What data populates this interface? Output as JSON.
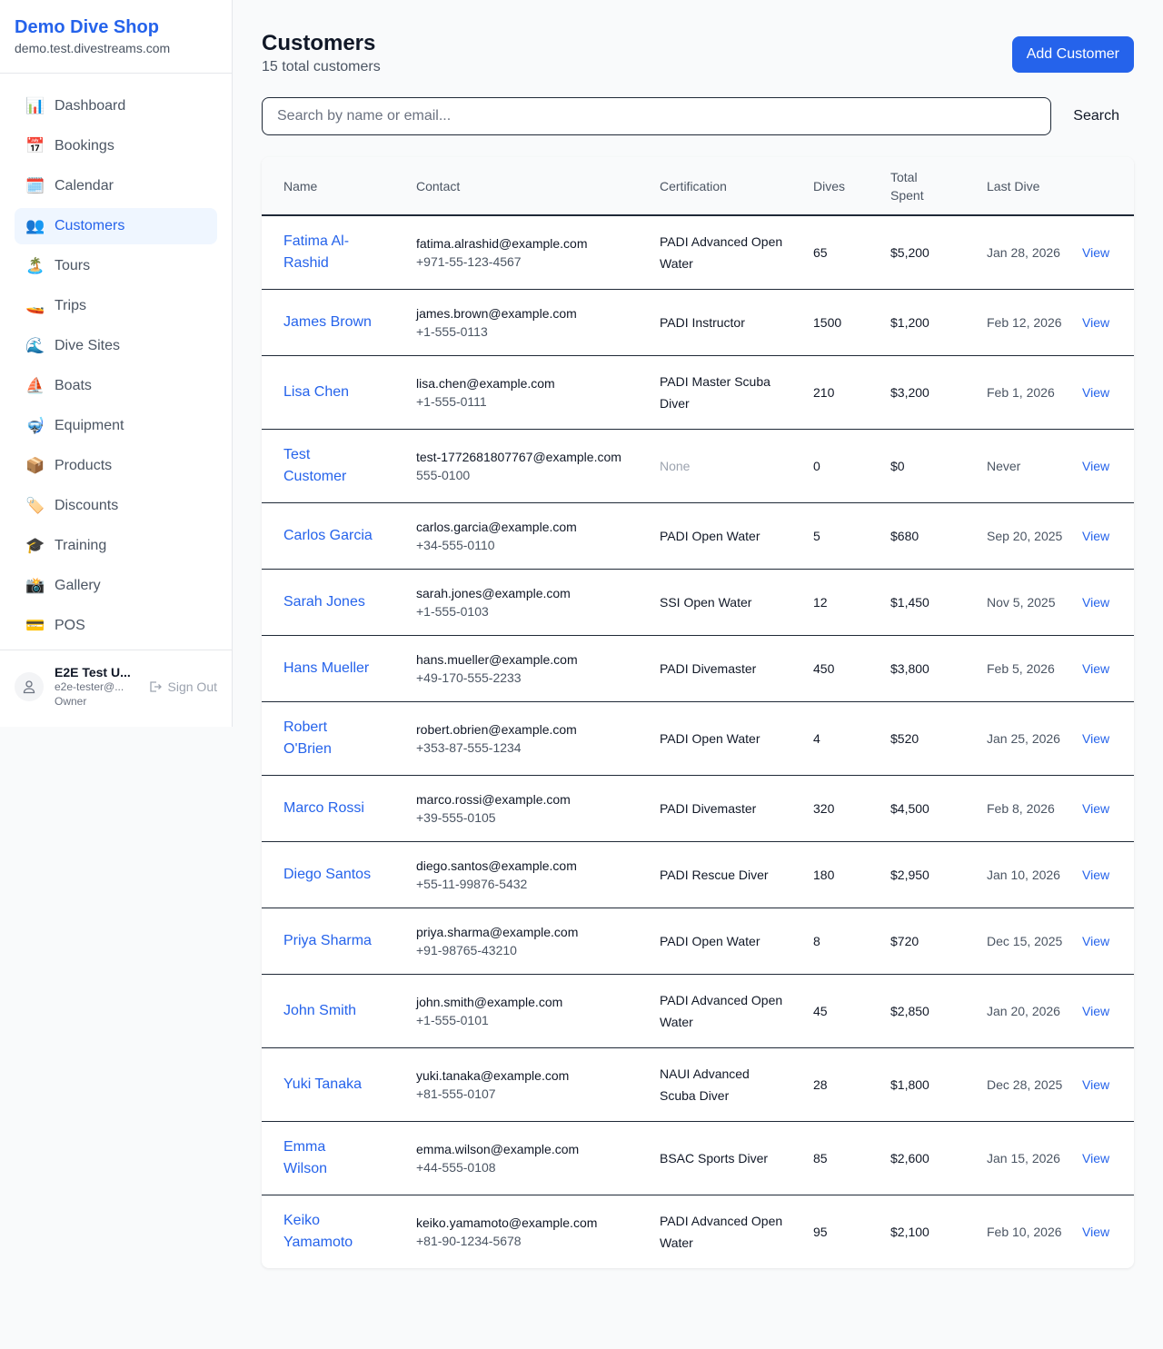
{
  "brand": {
    "name": "Demo Dive Shop",
    "domain": "demo.test.divestreams.com"
  },
  "nav": [
    {
      "icon": "📊",
      "icon_name": "bar-chart-icon",
      "label": "Dashboard"
    },
    {
      "icon": "📅",
      "icon_name": "calendar-date-icon",
      "label": "Bookings"
    },
    {
      "icon": "🗓️",
      "icon_name": "calendar-icon",
      "label": "Calendar"
    },
    {
      "icon": "👥",
      "icon_name": "people-icon",
      "label": "Customers",
      "active": true
    },
    {
      "icon": "🏝️",
      "icon_name": "island-icon",
      "label": "Tours"
    },
    {
      "icon": "🚤",
      "icon_name": "speedboat-icon",
      "label": "Trips"
    },
    {
      "icon": "🌊",
      "icon_name": "wave-icon",
      "label": "Dive Sites"
    },
    {
      "icon": "⛵",
      "icon_name": "sailboat-icon",
      "label": "Boats"
    },
    {
      "icon": "🤿",
      "icon_name": "diving-mask-icon",
      "label": "Equipment"
    },
    {
      "icon": "📦",
      "icon_name": "package-icon",
      "label": "Products"
    },
    {
      "icon": "🏷️",
      "icon_name": "tag-icon",
      "label": "Discounts"
    },
    {
      "icon": "🎓",
      "icon_name": "graduation-cap-icon",
      "label": "Training"
    },
    {
      "icon": "📸",
      "icon_name": "camera-icon",
      "label": "Gallery"
    },
    {
      "icon": "💳",
      "icon_name": "credit-card-icon",
      "label": "POS"
    }
  ],
  "user": {
    "name": "E2E Test U...",
    "email": "e2e-tester@...",
    "role": "Owner",
    "signout": "Sign Out"
  },
  "page": {
    "title": "Customers",
    "subtitle": "15 total customers",
    "add_label": "Add Customer",
    "search_placeholder": "Search by name or email...",
    "search_label": "Search"
  },
  "table": {
    "headers": [
      "Name",
      "Contact",
      "Certification",
      "Dives",
      "Total Spent",
      "Last Dive",
      ""
    ],
    "view_label": "View",
    "rows": [
      {
        "name": "Fatima Al-Rashid",
        "email": "fatima.alrashid@example.com",
        "phone": "+971-55-123-4567",
        "cert": "PADI Advanced Open Water",
        "dives": "65",
        "spent": "$5,200",
        "last": "Jan 28, 2026"
      },
      {
        "name": "James Brown",
        "email": "james.brown@example.com",
        "phone": "+1-555-0113",
        "cert": "PADI Instructor",
        "dives": "1500",
        "spent": "$1,200",
        "last": "Feb 12, 2026"
      },
      {
        "name": "Lisa Chen",
        "email": "lisa.chen@example.com",
        "phone": "+1-555-0111",
        "cert": "PADI Master Scuba Diver",
        "dives": "210",
        "spent": "$3,200",
        "last": "Feb 1, 2026"
      },
      {
        "name": "Test Customer",
        "email": "test-1772681807767@example.com",
        "phone": "555-0100",
        "cert": "None",
        "dives": "0",
        "spent": "$0",
        "last": "Never"
      },
      {
        "name": "Carlos Garcia",
        "email": "carlos.garcia@example.com",
        "phone": "+34-555-0110",
        "cert": "PADI Open Water",
        "dives": "5",
        "spent": "$680",
        "last": "Sep 20, 2025"
      },
      {
        "name": "Sarah Jones",
        "email": "sarah.jones@example.com",
        "phone": "+1-555-0103",
        "cert": "SSI Open Water",
        "dives": "12",
        "spent": "$1,450",
        "last": "Nov 5, 2025"
      },
      {
        "name": "Hans Mueller",
        "email": "hans.mueller@example.com",
        "phone": "+49-170-555-2233",
        "cert": "PADI Divemaster",
        "dives": "450",
        "spent": "$3,800",
        "last": "Feb 5, 2026"
      },
      {
        "name": "Robert O'Brien",
        "email": "robert.obrien@example.com",
        "phone": "+353-87-555-1234",
        "cert": "PADI Open Water",
        "dives": "4",
        "spent": "$520",
        "last": "Jan 25, 2026"
      },
      {
        "name": "Marco Rossi",
        "email": "marco.rossi@example.com",
        "phone": "+39-555-0105",
        "cert": "PADI Divemaster",
        "dives": "320",
        "spent": "$4,500",
        "last": "Feb 8, 2026"
      },
      {
        "name": "Diego Santos",
        "email": "diego.santos@example.com",
        "phone": "+55-11-99876-5432",
        "cert": "PADI Rescue Diver",
        "dives": "180",
        "spent": "$2,950",
        "last": "Jan 10, 2026"
      },
      {
        "name": "Priya Sharma",
        "email": "priya.sharma@example.com",
        "phone": "+91-98765-43210",
        "cert": "PADI Open Water",
        "dives": "8",
        "spent": "$720",
        "last": "Dec 15, 2025"
      },
      {
        "name": "John Smith",
        "email": "john.smith@example.com",
        "phone": "+1-555-0101",
        "cert": "PADI Advanced Open Water",
        "dives": "45",
        "spent": "$2,850",
        "last": "Jan 20, 2026"
      },
      {
        "name": "Yuki Tanaka",
        "email": "yuki.tanaka@example.com",
        "phone": "+81-555-0107",
        "cert": "NAUI Advanced Scuba Diver",
        "dives": "28",
        "spent": "$1,800",
        "last": "Dec 28, 2025"
      },
      {
        "name": "Emma Wilson",
        "email": "emma.wilson@example.com",
        "phone": "+44-555-0108",
        "cert": "BSAC Sports Diver",
        "dives": "85",
        "spent": "$2,600",
        "last": "Jan 15, 2026"
      },
      {
        "name": "Keiko Yamamoto",
        "email": "keiko.yamamoto@example.com",
        "phone": "+81-90-1234-5678",
        "cert": "PADI Advanced Open Water",
        "dives": "95",
        "spent": "$2,100",
        "last": "Feb 10, 2026"
      }
    ]
  },
  "colors": {
    "accent": "#2563eb",
    "active_bg": "#eff6ff"
  }
}
